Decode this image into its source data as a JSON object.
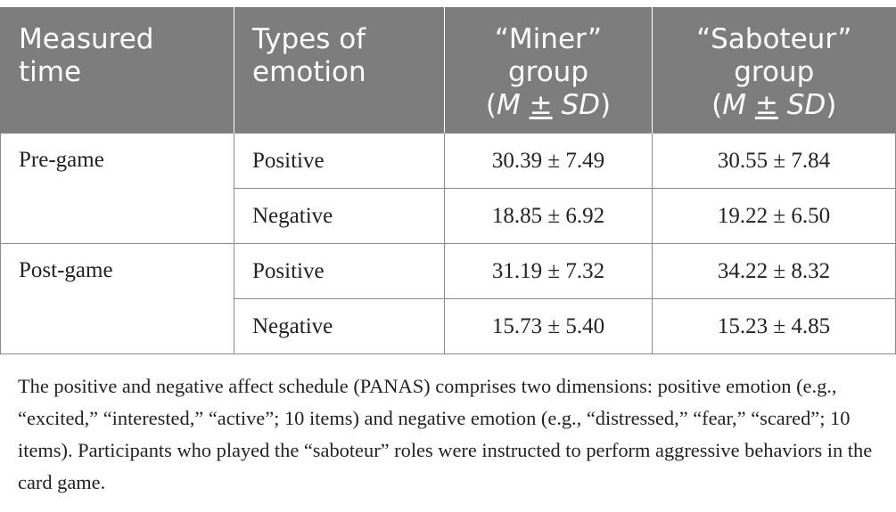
{
  "table": {
    "header": {
      "measured_time": [
        "Measured",
        "time"
      ],
      "types_of_emotion": [
        "Types of",
        "emotion"
      ],
      "miner": {
        "line1": "“Miner”",
        "line2": "group",
        "m": "M",
        "pm": "±",
        "sd": "SD"
      },
      "saboteur": {
        "line1": "“Saboteur”",
        "line2": "group",
        "m": "M",
        "pm": "±",
        "sd": "SD"
      }
    },
    "rows": [
      {
        "time": "Pre-game",
        "emotion": "Positive",
        "miner": "30.39 ± 7.49",
        "saboteur": "30.55 ± 7.84"
      },
      {
        "time": "",
        "emotion": "Negative",
        "miner": "18.85 ± 6.92",
        "saboteur": "19.22 ± 6.50"
      },
      {
        "time": "Post-game",
        "emotion": "Positive",
        "miner": "31.19 ± 7.32",
        "saboteur": "34.22 ± 8.32"
      },
      {
        "time": "",
        "emotion": "Negative",
        "miner": "15.73 ± 5.40",
        "saboteur": "15.23 ± 4.85"
      }
    ]
  },
  "footnote": "The positive and negative affect schedule (PANAS) comprises two dimensions: positive emotion (e.g., “excited,” “interested,” “active”; 10 items) and negative emotion (e.g., “distressed,” “fear,” “scared”; 10 items). Participants who played the “saboteur” roles were instructed to perform aggressive behaviors in the card game.",
  "colors": {
    "header_bg": "#7d7d7d",
    "header_text": "#ffffff",
    "body_text": "#222222",
    "border": "#8a8a8a"
  }
}
